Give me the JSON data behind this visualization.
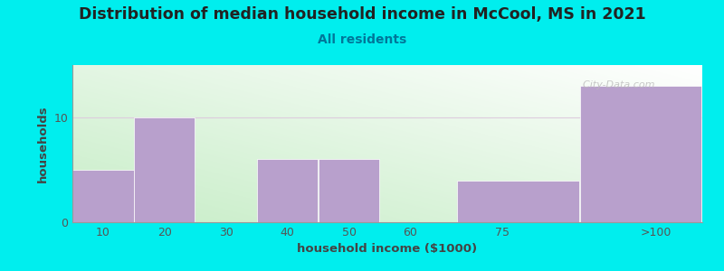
{
  "title": "Distribution of median household income in McCool, MS in 2021",
  "subtitle": "All residents",
  "xlabel": "household income ($1000)",
  "ylabel": "households",
  "bar_labels": [
    "10",
    "20",
    "30",
    "40",
    "50",
    "60",
    "75",
    ">100"
  ],
  "bar_heights": [
    5,
    10,
    0,
    6,
    6,
    0,
    4,
    13
  ],
  "bar_color": "#b8a0cc",
  "bg_outer": "#00eeee",
  "ylim": [
    0,
    15
  ],
  "yticks": [
    0,
    10
  ],
  "watermark": "  City-Data.com",
  "title_fontsize": 12.5,
  "subtitle_fontsize": 10,
  "axis_label_fontsize": 9.5,
  "tick_fontsize": 9,
  "title_color": "#222222",
  "subtitle_color": "#007799",
  "label_color": "#444444",
  "tick_color": "#555555",
  "watermark_color": "#bbbbbb",
  "bg_gradient_colors": [
    "#c8eec8",
    "#f5fff5",
    "#ffffff"
  ],
  "grid_color": "#ddccdd",
  "bin_edges": [
    5,
    15,
    25,
    35,
    45,
    55,
    67.5,
    87.5,
    107.5
  ]
}
